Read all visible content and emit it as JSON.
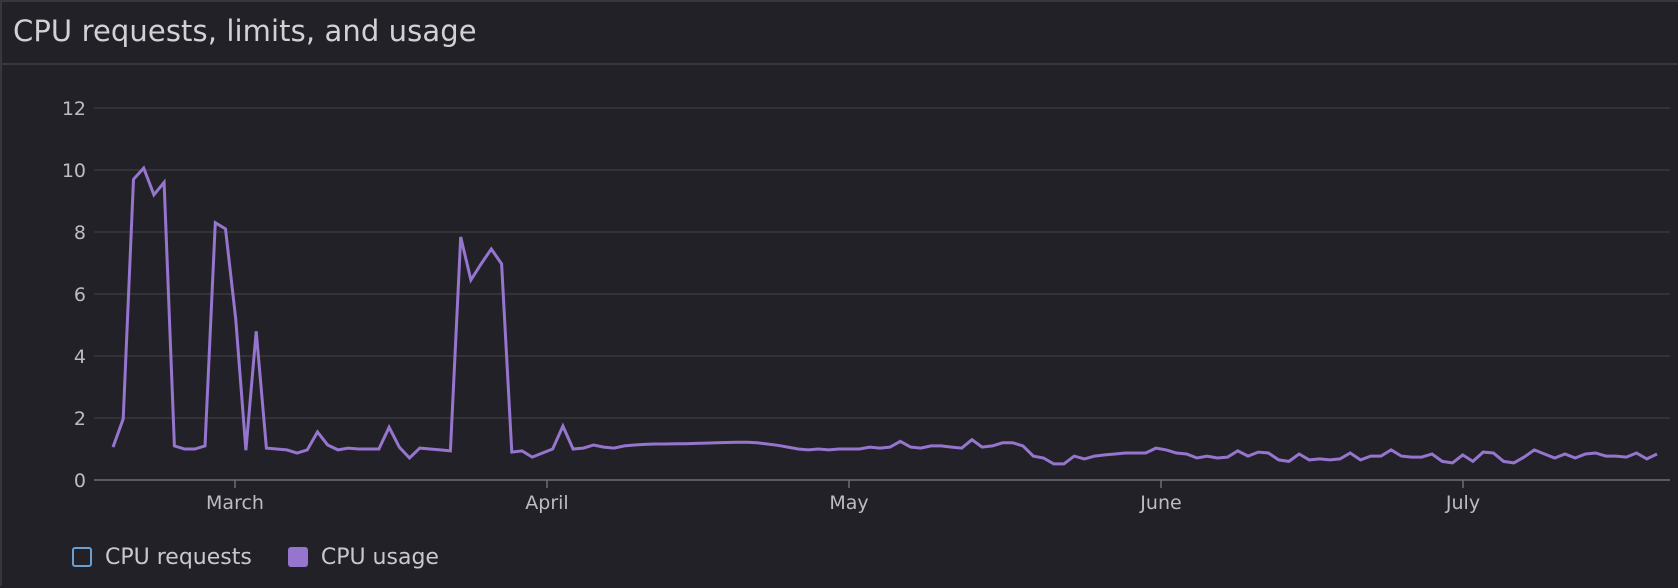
{
  "panel": {
    "title": "CPU requests, limits, and usage"
  },
  "legend": [
    {
      "label": "CPU requests",
      "color": "#6a9fcf",
      "style": "outline"
    },
    {
      "label": "CPU usage",
      "color": "#9575cd",
      "style": "filled"
    }
  ],
  "colors": {
    "background": "#222127",
    "border": "#38373d",
    "grid": "#3a393f",
    "axis": "#6e6d73",
    "tick_text": "#bdbdc1",
    "usage_line": "#9575cd"
  },
  "chart_data": {
    "type": "line",
    "title": "CPU requests, limits, and usage",
    "xlabel": "",
    "ylabel": "",
    "ylim": [
      0,
      12
    ],
    "yticks": [
      0,
      2,
      4,
      6,
      8,
      10,
      12
    ],
    "xticks": [
      "March",
      "April",
      "May",
      "June",
      "July"
    ],
    "grid": true,
    "legend_position": "bottom-left",
    "series": [
      {
        "name": "CPU requests",
        "values": []
      },
      {
        "name": "CPU usage",
        "values": [
          1.06,
          1.97,
          9.7,
          10.06,
          9.2,
          9.6,
          1.1,
          1.0,
          1.0,
          1.1,
          8.3,
          8.1,
          5.2,
          0.96,
          4.8,
          1.03,
          1.0,
          0.97,
          0.87,
          0.97,
          1.55,
          1.13,
          0.97,
          1.03,
          1.0,
          1.0,
          1.0,
          1.7,
          1.06,
          0.71,
          1.03,
          1.0,
          0.97,
          0.94,
          7.84,
          6.45,
          6.97,
          7.45,
          6.97,
          0.9,
          0.94,
          0.74,
          0.87,
          1.0,
          1.74,
          1.0,
          1.03,
          1.13,
          1.06,
          1.03,
          1.1,
          1.13,
          1.15,
          1.16,
          1.16,
          1.17,
          1.17,
          1.18,
          1.19,
          1.2,
          1.21,
          1.22,
          1.22,
          1.2,
          1.16,
          1.12,
          1.06,
          1.0,
          0.97,
          1.0,
          0.97,
          1.0,
          1.0,
          1.0,
          1.06,
          1.03,
          1.06,
          1.25,
          1.06,
          1.03,
          1.1,
          1.1,
          1.06,
          1.03,
          1.3,
          1.06,
          1.1,
          1.2,
          1.2,
          1.1,
          0.77,
          0.71,
          0.52,
          0.52,
          0.77,
          0.68,
          0.77,
          0.81,
          0.84,
          0.87,
          0.87,
          0.87,
          1.03,
          0.97,
          0.87,
          0.84,
          0.71,
          0.77,
          0.71,
          0.74,
          0.94,
          0.77,
          0.9,
          0.87,
          0.65,
          0.6,
          0.84,
          0.65,
          0.68,
          0.65,
          0.68,
          0.87,
          0.65,
          0.77,
          0.77,
          0.97,
          0.77,
          0.74,
          0.74,
          0.84,
          0.6,
          0.55,
          0.81,
          0.6,
          0.9,
          0.87,
          0.6,
          0.55,
          0.74,
          0.97,
          0.84,
          0.71,
          0.84,
          0.71,
          0.84,
          0.87,
          0.77,
          0.77,
          0.74,
          0.87,
          0.68,
          0.84
        ]
      }
    ]
  }
}
